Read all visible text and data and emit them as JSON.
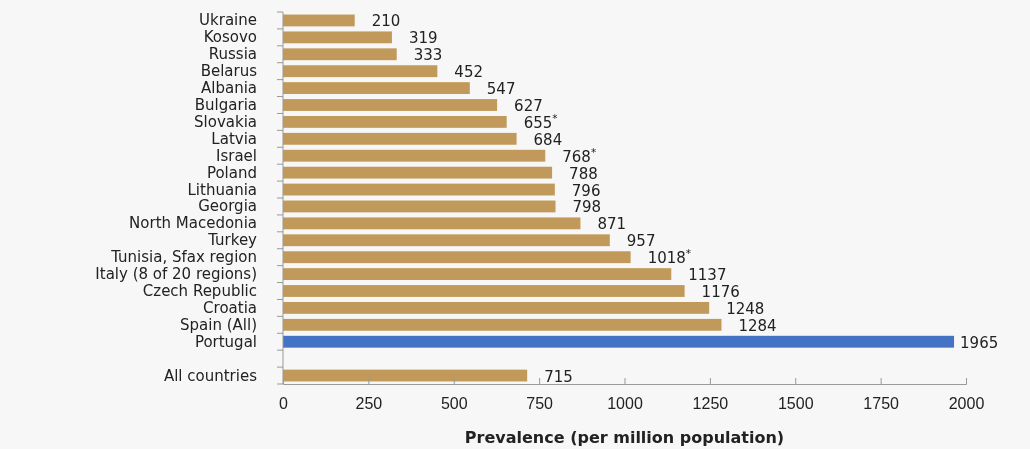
{
  "chart_data": {
    "type": "bar",
    "orientation": "horizontal",
    "xlabel": "Prevalence (per million population)",
    "categories": [
      "Ukraine",
      "Kosovo",
      "Russia",
      "Belarus",
      "Albania",
      "Bulgaria",
      "Slovakia",
      "Latvia",
      "Israel",
      "Poland",
      "Lithuania",
      "Georgia",
      "North Macedonia",
      "Turkey",
      "Tunisia, Sfax region",
      "Italy (8 of 20 regions)",
      "Czech Republic",
      "Croatia",
      "Spain (All)",
      "Portugal",
      null,
      "All countries"
    ],
    "values": [
      210,
      319,
      333,
      452,
      547,
      627,
      655,
      684,
      768,
      788,
      796,
      798,
      871,
      957,
      1018,
      1137,
      1176,
      1248,
      1284,
      1965,
      null,
      715
    ],
    "value_labels": [
      "210",
      "319",
      "333",
      "452",
      "547",
      "627",
      "655$^{*}$",
      "684",
      "768$^{*}$",
      "788",
      "796",
      "798",
      "871",
      "957",
      "1018$^{*}$",
      "1137",
      "1176",
      "1248",
      "1284",
      "1965",
      null,
      "715"
    ],
    "colors": [
      "#c19a5b",
      "#c19a5b",
      "#c19a5b",
      "#c19a5b",
      "#c19a5b",
      "#c19a5b",
      "#c19a5b",
      "#c19a5b",
      "#c19a5b",
      "#c19a5b",
      "#c19a5b",
      "#c19a5b",
      "#c19a5b",
      "#c19a5b",
      "#c19a5b",
      "#c19a5b",
      "#c19a5b",
      "#c19a5b",
      "#c19a5b",
      "#4472c4",
      null,
      "#c19a5b"
    ],
    "xlim": [
      0,
      2000
    ],
    "xticks": [
      0,
      250,
      500,
      750,
      1000,
      1250,
      1500,
      1750,
      2000
    ]
  }
}
